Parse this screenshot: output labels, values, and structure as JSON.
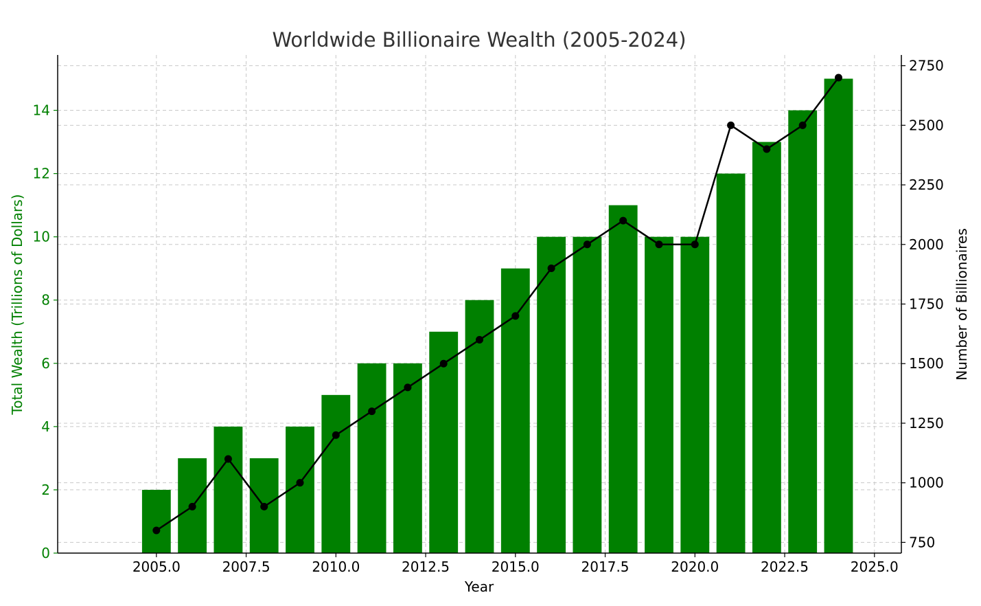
{
  "chart_data": {
    "type": "bar",
    "title": "Worldwide Billionaire Wealth (2005-2024)",
    "xlabel": "Year",
    "ylabel": "Total Wealth (Trillions of Dollars)",
    "y2label": "Number of Billionaires",
    "x": [
      2005,
      2006,
      2007,
      2008,
      2009,
      2010,
      2011,
      2012,
      2013,
      2014,
      2015,
      2016,
      2017,
      2018,
      2019,
      2020,
      2021,
      2022,
      2023,
      2024
    ],
    "series": [
      {
        "type": "bar",
        "axis": "left",
        "color": "#008000",
        "values": [
          2,
          3,
          4,
          3,
          4,
          5,
          6,
          6,
          7,
          8,
          9,
          10,
          10,
          11,
          10,
          10,
          12,
          13,
          14,
          15
        ]
      },
      {
        "type": "line",
        "axis": "right",
        "color": "#000000",
        "marker": "circle",
        "values": [
          800,
          900,
          1100,
          900,
          1000,
          1200,
          1300,
          1400,
          1500,
          1600,
          1700,
          1900,
          2000,
          2100,
          2000,
          2000,
          2500,
          2400,
          2500,
          2700
        ]
      }
    ],
    "xlim": [
      2002.25,
      2025.75
    ],
    "ylim": [
      0,
      15.75
    ],
    "y2lim": [
      705,
      2795
    ],
    "x_ticks": [
      "2005.0",
      "2007.5",
      "2010.0",
      "2012.5",
      "2015.0",
      "2017.5",
      "2020.0",
      "2022.5",
      "2025.0"
    ],
    "x_tick_values": [
      2005,
      2007.5,
      2010,
      2012.5,
      2015,
      2017.5,
      2020,
      2022.5,
      2025
    ],
    "y_ticks": [
      "0",
      "2",
      "4",
      "6",
      "8",
      "10",
      "12",
      "14"
    ],
    "y_tick_values": [
      0,
      2,
      4,
      6,
      8,
      10,
      12,
      14
    ],
    "y2_ticks": [
      "750",
      "1000",
      "1250",
      "1500",
      "1750",
      "2000",
      "2250",
      "2500",
      "2750"
    ],
    "y2_tick_values": [
      750,
      1000,
      1250,
      1500,
      1750,
      2000,
      2250,
      2500,
      2750
    ],
    "grid": true,
    "left_axis_color": "#008000",
    "right_axis_color": "#000000"
  }
}
